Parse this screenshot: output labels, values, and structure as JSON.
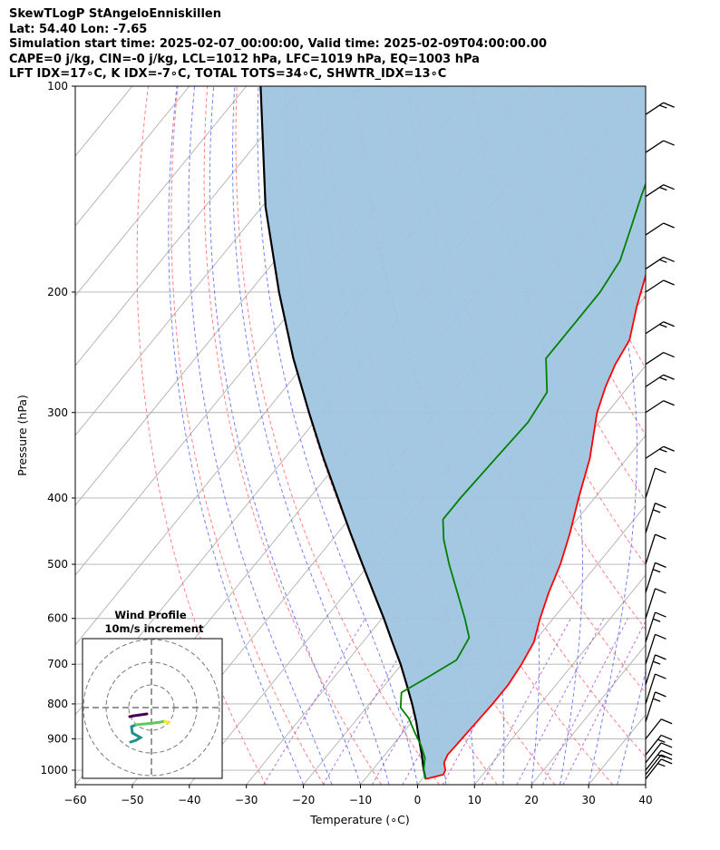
{
  "header": {
    "line1": "SkewTLogP StAngeloEnniskillen",
    "line2": "Lat: 54.40   Lon: -7.65",
    "line3": "Simulation start time: 2025-02-07_00:00:00, Valid time: 2025-02-09T04:00:00.00",
    "line4": "CAPE=0 j/kg, CIN=-0 j/kg, LCL=1012 hPa, LFC=1019 hPa, EQ=1003 hPa",
    "line5": "LFT IDX=17∘C, K IDX=-7∘C, TOTAL TOTS=34∘C, SHWTR_IDX=13∘C"
  },
  "chart_data": {
    "type": "line",
    "title": "SkewTLogP StAngeloEnniskillen",
    "xlabel": "Temperature (∘C)",
    "ylabel": "Pressure (hPa)",
    "xlim": [
      -60,
      40
    ],
    "ylim": [
      1050,
      100
    ],
    "x_ticks": [
      -60,
      -50,
      -40,
      -30,
      -20,
      -10,
      0,
      10,
      20,
      30,
      40
    ],
    "y_ticks": [
      1000,
      900,
      800,
      700,
      600,
      500,
      400,
      300,
      200,
      100
    ],
    "grid": true,
    "skew_note": "Isotherms drawn diagonally (skewed), pressure on log scale",
    "colors": {
      "temperature": "#ff0000",
      "dewpoint": "#008000",
      "parcel": "#000000",
      "shade": "#a0c5e0",
      "dry_adiabat": "#ff6a6a",
      "moist_adiabat": "#5a6cf0",
      "mixing_ratio": "#a040d0",
      "isotherm": "#b0b0b0"
    },
    "series": [
      {
        "name": "Temperature",
        "values_note": "pressure (hPa) / temperature (C)",
        "points": [
          [
            1030,
            0.6
          ],
          [
            1015,
            3.1
          ],
          [
            1000,
            2.8
          ],
          [
            975,
            1.5
          ],
          [
            950,
            1.0
          ],
          [
            900,
            1.2
          ],
          [
            850,
            1.4
          ],
          [
            800,
            1.6
          ],
          [
            750,
            1.6
          ],
          [
            700,
            1.0
          ],
          [
            650,
            0.0
          ],
          [
            600,
            -2.3
          ],
          [
            550,
            -4.5
          ],
          [
            500,
            -6.5
          ],
          [
            450,
            -9.3
          ],
          [
            400,
            -12.8
          ],
          [
            350,
            -16.5
          ],
          [
            300,
            -21.8
          ],
          [
            275,
            -24.0
          ],
          [
            255,
            -25.5
          ],
          [
            235,
            -26.5
          ],
          [
            210,
            -30.0
          ],
          [
            185,
            -33.5
          ],
          [
            170,
            -34.5
          ],
          [
            155,
            -36.0
          ],
          [
            140,
            -37.5
          ],
          [
            125,
            -39.0
          ],
          [
            112,
            -40.5
          ],
          [
            100,
            -41.5
          ]
        ]
      },
      {
        "name": "Dewpoint",
        "values_note": "pressure (hPa) / dewpoint (C)",
        "points": [
          [
            1030,
            0.6
          ],
          [
            1000,
            -1.0
          ],
          [
            960,
            -2.5
          ],
          [
            920,
            -5.0
          ],
          [
            880,
            -8.0
          ],
          [
            840,
            -11.0
          ],
          [
            810,
            -14.0
          ],
          [
            770,
            -16.0
          ],
          [
            730,
            -13.5
          ],
          [
            690,
            -11.0
          ],
          [
            640,
            -12.0
          ],
          [
            600,
            -15.5
          ],
          [
            550,
            -20.5
          ],
          [
            500,
            -26.0
          ],
          [
            460,
            -30.5
          ],
          [
            430,
            -33.5
          ],
          [
            400,
            -33.5
          ],
          [
            350,
            -33.0
          ],
          [
            310,
            -32.5
          ],
          [
            280,
            -33.5
          ],
          [
            250,
            -38.5
          ],
          [
            225,
            -38.5
          ],
          [
            200,
            -38.5
          ],
          [
            180,
            -39.5
          ],
          [
            163,
            -42.0
          ],
          [
            145,
            -45.0
          ],
          [
            125,
            -48.5
          ],
          [
            110,
            -51.5
          ],
          [
            100,
            -54.0
          ]
        ]
      },
      {
        "name": "Parcel",
        "values_note": "pressure (hPa) / parcel temperature (C)",
        "points": [
          [
            1030,
            0.6
          ],
          [
            1000,
            -1.0
          ],
          [
            950,
            -3.5
          ],
          [
            900,
            -6.3
          ],
          [
            850,
            -9.2
          ],
          [
            800,
            -12.5
          ],
          [
            750,
            -16.2
          ],
          [
            700,
            -20.2
          ],
          [
            650,
            -24.8
          ],
          [
            600,
            -29.7
          ],
          [
            550,
            -35.2
          ],
          [
            500,
            -41.2
          ],
          [
            450,
            -47.8
          ],
          [
            400,
            -55.0
          ],
          [
            350,
            -63.2
          ],
          [
            300,
            -72.3
          ],
          [
            250,
            -82.8
          ],
          [
            200,
            -94.8
          ],
          [
            150,
            -109.4
          ],
          [
            100,
            -127.5
          ]
        ]
      }
    ],
    "wind_barbs": {
      "note": "wind barbs shown along the right edge at each pressure level",
      "levels": [
        1030,
        1015,
        1000,
        975,
        950,
        900,
        850,
        800,
        750,
        700,
        650,
        600,
        550,
        500,
        450,
        400,
        350,
        300,
        275,
        255,
        230,
        200,
        185,
        165,
        145,
        125,
        110
      ]
    },
    "inset": {
      "title": "Wind Profile",
      "subtitle": "10m/s increment",
      "type": "hodograph",
      "rings": [
        10,
        20,
        30
      ]
    }
  }
}
